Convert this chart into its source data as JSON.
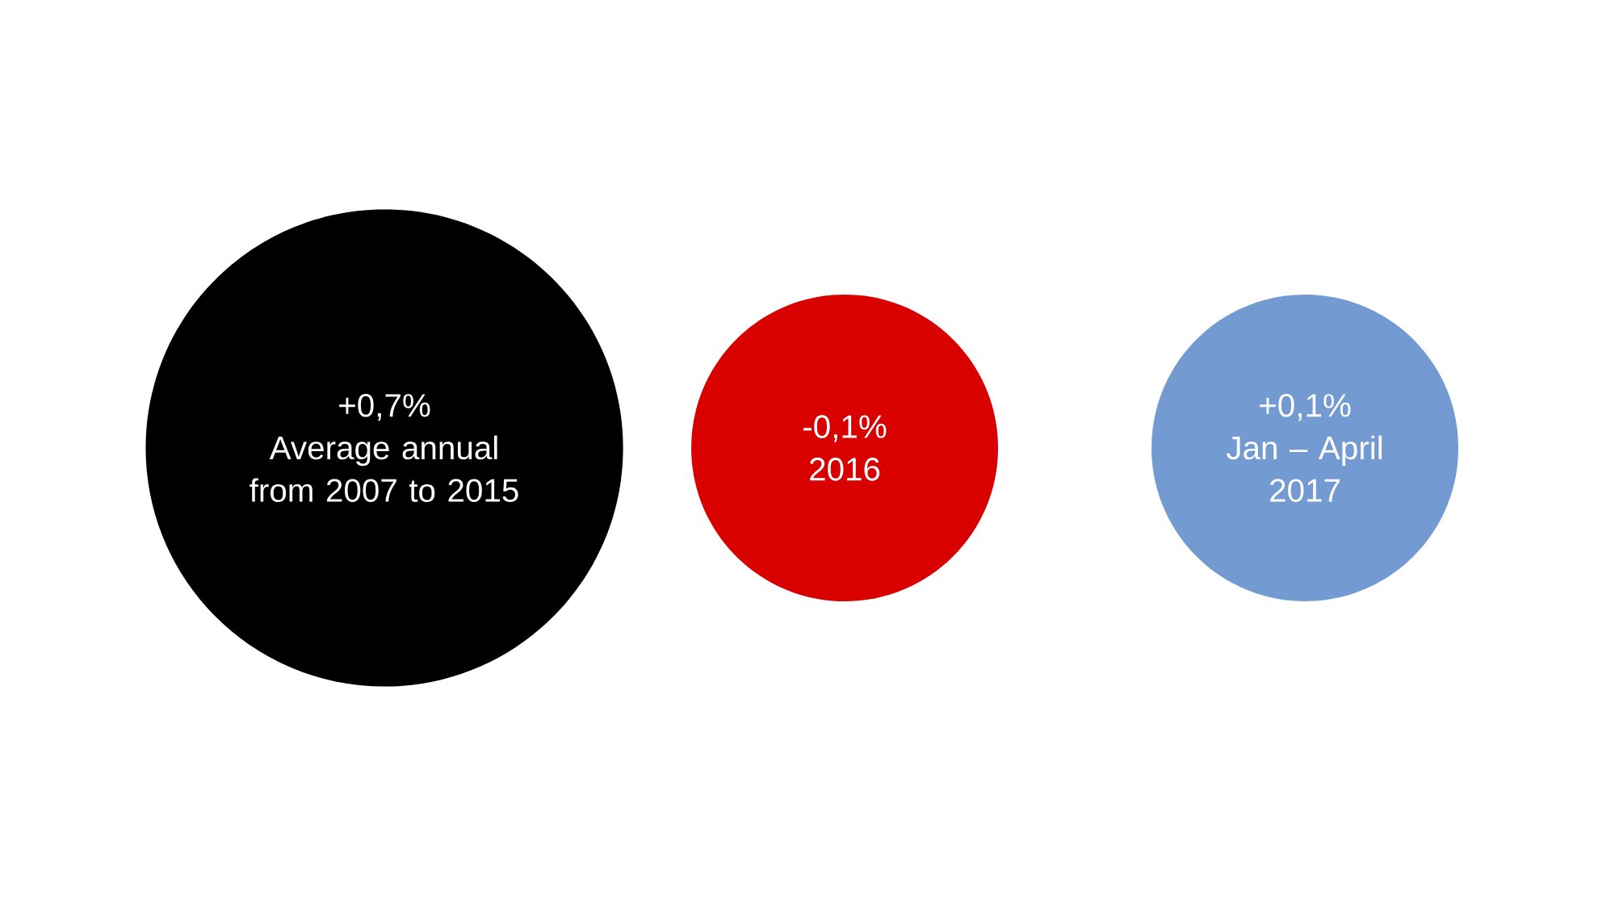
{
  "chart_data": {
    "type": "other",
    "categories": [
      "Average annual from 2007 to 2015",
      "2016",
      "Jan – April 2017"
    ],
    "values": [
      0.7,
      -0.1,
      0.1
    ],
    "value_labels": [
      "+0,7%",
      "-0,1%",
      "+0,1%"
    ],
    "colors": [
      "#000000",
      "#d90000",
      "#739bd2"
    ]
  }
}
